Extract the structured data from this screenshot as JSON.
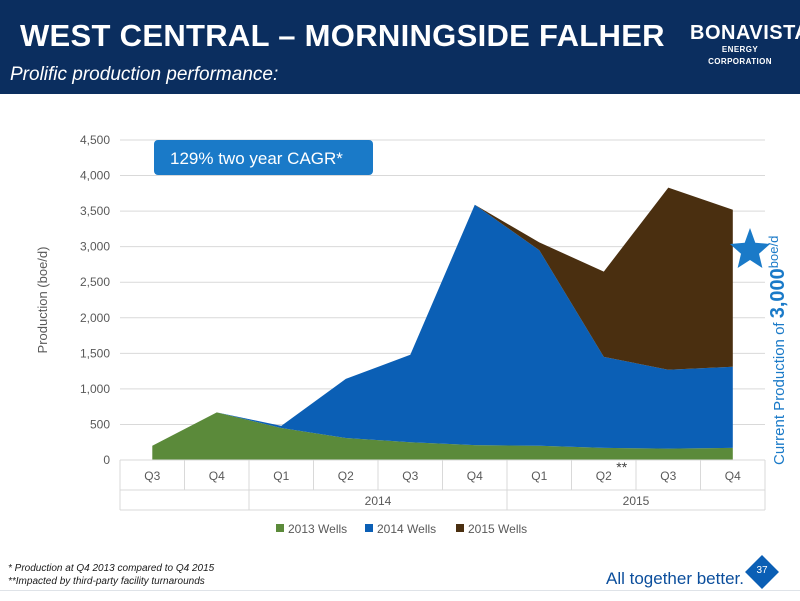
{
  "header": {
    "title": "WEST CENTRAL – MORNINGSIDE FALHER",
    "subtitle": "Prolific production performance:",
    "logo_main": "BONAVISTA",
    "logo_sub": "ENERGY CORPORATION"
  },
  "colors": {
    "header_bg": "#0b2e5f",
    "series_2013": "#5b8a3a",
    "series_2014": "#0b5fb5",
    "series_2015": "#4a2f10",
    "callout_bg": "#1a7ac8",
    "accent_blue": "#1a7ac8"
  },
  "callout": "129% two year CAGR*",
  "side_label": {
    "prefix": "Current Production of ",
    "value": "3,000",
    "unit": "boe/d"
  },
  "star_icon": "star-icon",
  "footer": {
    "note1": "*  Production at Q4 2013 compared to Q4 2015",
    "note2": "**Impacted by third-party facility turnarounds",
    "tagline": "All together better.",
    "page": "37"
  },
  "chart_data": {
    "type": "area",
    "stacked": true,
    "categories": [
      "Q3",
      "Q4",
      "Q1",
      "Q2",
      "Q3",
      "Q4",
      "Q1",
      "Q2",
      "Q3",
      "Q4"
    ],
    "year_groups": [
      {
        "label": "2014",
        "start": 2,
        "end": 5
      },
      {
        "label": "2015",
        "start": 6,
        "end": 9
      }
    ],
    "category_annotations": [
      {
        "index": 7,
        "text": "**"
      }
    ],
    "series": [
      {
        "name": "2013 Wells",
        "values": [
          200,
          670,
          450,
          310,
          250,
          210,
          200,
          170,
          160,
          170
        ]
      },
      {
        "name": "2014 Wells",
        "values": [
          0,
          0,
          30,
          830,
          1230,
          3380,
          2750,
          1280,
          1110,
          1140
        ]
      },
      {
        "name": "2015 Wells",
        "values": [
          0,
          0,
          0,
          0,
          0,
          0,
          110,
          1200,
          2560,
          2210
        ]
      }
    ],
    "ylabel": "Production (boe/d)",
    "ylim": [
      0,
      4500
    ],
    "yticks": [
      "0",
      "500",
      "1,000",
      "1,500",
      "2,000",
      "2,500",
      "3,000",
      "3,500",
      "4,000",
      "4,500"
    ],
    "grid": true,
    "legend_position": "bottom"
  }
}
